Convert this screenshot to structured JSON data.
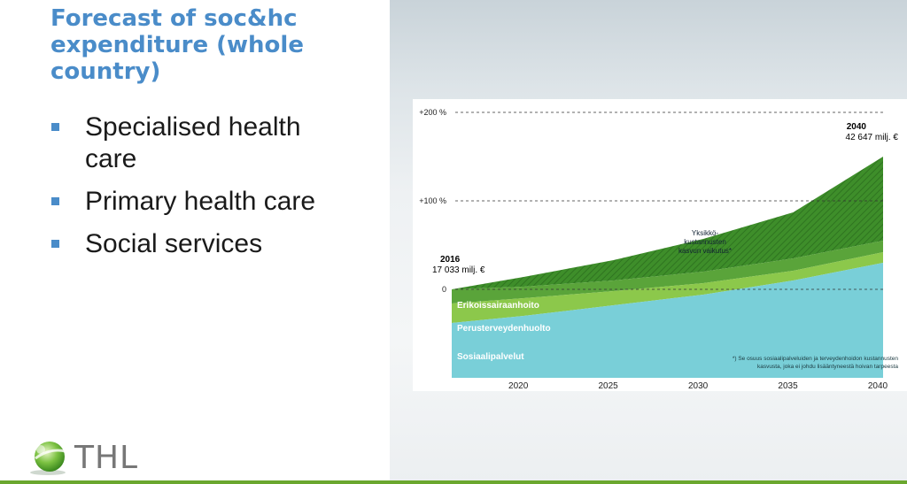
{
  "slide": {
    "title": "Forecast of soc&hc expenditure (whole country)",
    "bullets": [
      "Specialised health care",
      "Primary health care",
      "Social services"
    ],
    "logo_text": "THL"
  },
  "chart_data": {
    "type": "area",
    "stacked": true,
    "x": [
      2016,
      2020,
      2025,
      2030,
      2035,
      2040
    ],
    "xlim": [
      2016,
      2040
    ],
    "x_ticks": [
      "2020",
      "2025",
      "2030",
      "2035",
      "2040"
    ],
    "y_ticks": [
      "+200 %",
      "+100 %",
      "0"
    ],
    "ylim": [
      -100,
      200
    ],
    "ylabel_unit": "%",
    "grid": "dashed lines at 0, +100 %, +200 %",
    "series": [
      {
        "name": "Sosiaalipalvelut",
        "color": "#79cfd8",
        "top": [
          -38,
          -30,
          -18,
          -6,
          10,
          30
        ]
      },
      {
        "name": "Perusterveydenhuolto",
        "color": "#8cc84b",
        "top": [
          -16,
          -10,
          -2,
          7,
          21,
          42
        ]
      },
      {
        "name": "Erikoissairaanhoito",
        "color": "#5aa43a",
        "top": [
          0,
          3,
          10,
          20,
          35,
          55
        ]
      },
      {
        "name": "Yksikkökustannusten kasvun vaikutus",
        "color": "#3e8e2a",
        "hatched": true,
        "top": [
          0,
          14,
          33,
          57,
          87,
          150
        ]
      }
    ],
    "annotations": {
      "start_year": "2016",
      "start_value": "17 033 milj. €",
      "end_year": "2040",
      "end_value": "42 647 milj. €",
      "hatch_label": [
        "Yksikkö-",
        "kustannusten",
        "kasvun vaikutus*"
      ],
      "footnote": [
        "*) Se osuus sosiaalipalveluiden ja terveydenhoidon kustannusten",
        "kasvusta, joka ei johdu lisääntyneestä hoivan tarpeesta"
      ]
    }
  }
}
